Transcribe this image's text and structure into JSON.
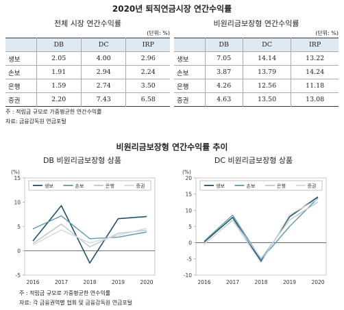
{
  "page_title": "2020년 퇴직연금시장 연간수익률",
  "tables": {
    "left": {
      "title": "전체 시장 연간수익률",
      "unit": "(단위: %)",
      "columns": [
        "",
        "DB",
        "DC",
        "IRP"
      ],
      "rows": [
        [
          "생보",
          "2.05",
          "4.00",
          "2.96"
        ],
        [
          "손보",
          "1.91",
          "2.94",
          "2.24"
        ],
        [
          "은행",
          "1.59",
          "2.74",
          "3.50"
        ],
        [
          "증권",
          "2.20",
          "7.43",
          "6.58"
        ]
      ]
    },
    "right": {
      "title": "비원리금보장형 연간수익률",
      "unit": "(단위: %)",
      "columns": [
        "",
        "DB",
        "DC",
        "IRP"
      ],
      "rows": [
        [
          "생보",
          "7.05",
          "14.14",
          "13.22"
        ],
        [
          "손보",
          "3.87",
          "13.79",
          "14.24"
        ],
        [
          "은행",
          "4.26",
          "12.56",
          "11.18"
        ],
        [
          "증권",
          "4.63",
          "13.50",
          "13.08"
        ]
      ]
    }
  },
  "table_notes": {
    "note1": "주 : 적립금 규모로 가중평균한 연간수익률",
    "note2": "자료: 금융감독원 연금포털"
  },
  "section_title": "비원리금보장형 연간수익률 추이",
  "chart_notes": {
    "note1": "주 : 적립금 규모로 가중평균한 연수익률",
    "note2": "자료: 각 금융권역별 협회 및 금융감독원 연금포털"
  },
  "chart_data": [
    {
      "type": "line",
      "title": "DB 비원리금보장형 상품",
      "ylabel": "(%)",
      "x": [
        "2016",
        "2017",
        "2018",
        "2019",
        "2020"
      ],
      "ylim": [
        -5,
        15
      ],
      "yticks": [
        "15",
        "10",
        "5",
        "0",
        "-5"
      ],
      "series": [
        {
          "name": "생보",
          "color": "#1f4e6b",
          "values": [
            2.0,
            9.3,
            -2.5,
            6.6,
            7.05
          ]
        },
        {
          "name": "손보",
          "color": "#5b9aa8",
          "values": [
            4.5,
            7.2,
            2.5,
            2.8,
            3.87
          ]
        },
        {
          "name": "은행",
          "color": "#b8c6d2",
          "values": [
            1.5,
            5.5,
            0.8,
            3.6,
            4.26
          ]
        },
        {
          "name": "증권",
          "color": "#d4d8dc",
          "values": [
            1.2,
            4.3,
            1.6,
            3.2,
            4.63
          ]
        }
      ]
    },
    {
      "type": "line",
      "title": "DC 비원리금보장형 상품",
      "ylabel": "(%)",
      "x": [
        "2016",
        "2017",
        "2018",
        "2019",
        "2020"
      ],
      "ylim": [
        -10,
        20
      ],
      "yticks": [
        "20",
        "15",
        "10",
        "5",
        "0",
        "-5",
        "-10"
      ],
      "series": [
        {
          "name": "생보",
          "color": "#1f4e6b",
          "values": [
            0.2,
            7.8,
            -5.8,
            8.0,
            14.14
          ]
        },
        {
          "name": "손보",
          "color": "#5b9aa8",
          "values": [
            0.5,
            8.5,
            -5.2,
            5.0,
            13.79
          ]
        },
        {
          "name": "은행",
          "color": "#b8c6d2",
          "values": [
            -0.5,
            7.0,
            -4.8,
            7.0,
            12.56
          ]
        },
        {
          "name": "증권",
          "color": "#d4d8dc",
          "values": [
            -0.3,
            6.8,
            -6.2,
            8.6,
            13.5
          ]
        }
      ]
    }
  ]
}
